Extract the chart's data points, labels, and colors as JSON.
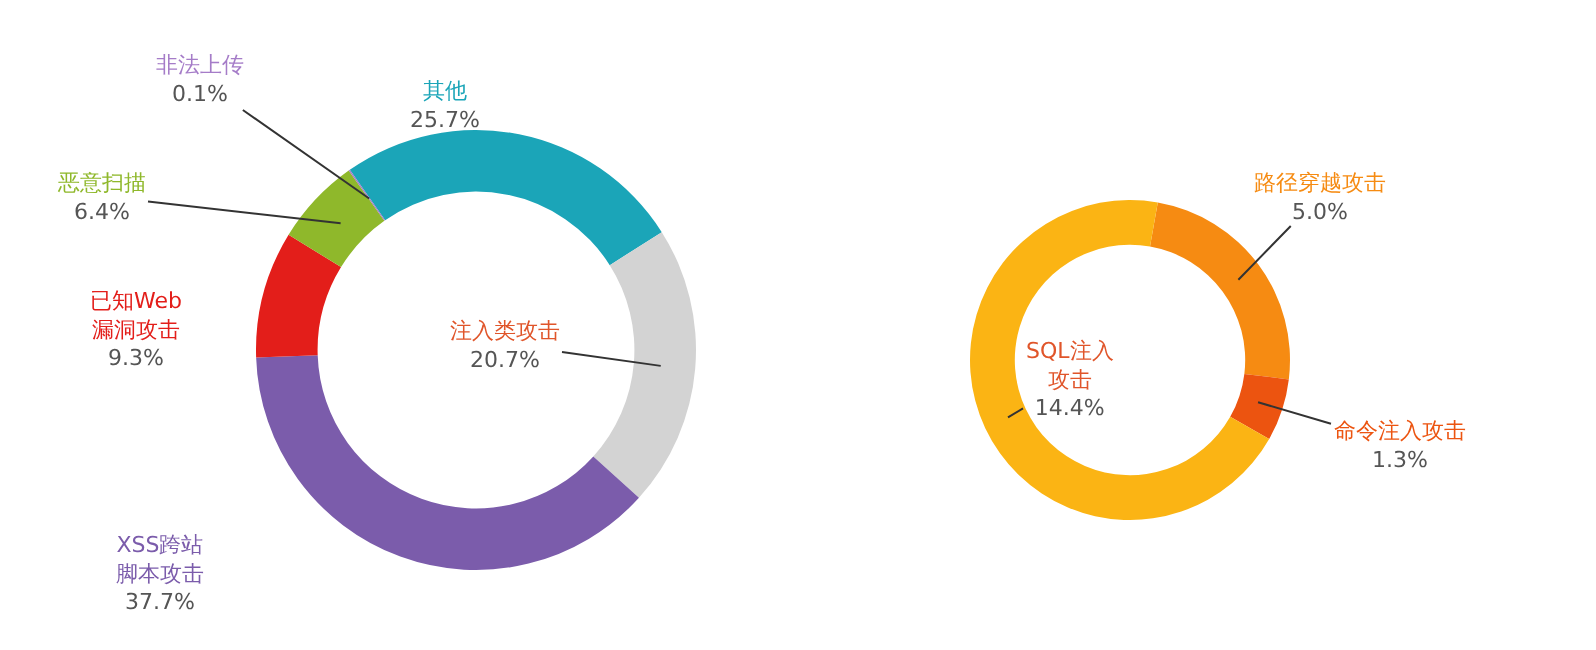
{
  "chart_data": [
    {
      "type": "donut",
      "categories": [
        "其他",
        "注入类攻击",
        "XSS跨站脚本攻击",
        "已知Web漏洞攻击",
        "恶意扫描",
        "非法上传"
      ],
      "values": [
        25.7,
        20.7,
        37.7,
        9.3,
        6.4,
        0.1
      ],
      "colors": [
        "#1ba5b8",
        "#d3d3d3",
        "#7b5cab",
        "#e31e1a",
        "#8fb82b",
        "#a57cc8"
      ],
      "value_labels": [
        "25.7%",
        "20.7%",
        "37.7%",
        "9.3%",
        "6.4%",
        "0.1%"
      ]
    },
    {
      "type": "donut",
      "categories": [
        "路径穿越攻击",
        "命令注入攻击",
        "SQL注入攻击"
      ],
      "values": [
        5.0,
        1.3,
        14.4
      ],
      "colors": [
        "#f68b12",
        "#ec5410",
        "#fbb414"
      ],
      "value_labels": [
        "5.0%",
        "1.3%",
        "14.4%"
      ]
    }
  ]
}
